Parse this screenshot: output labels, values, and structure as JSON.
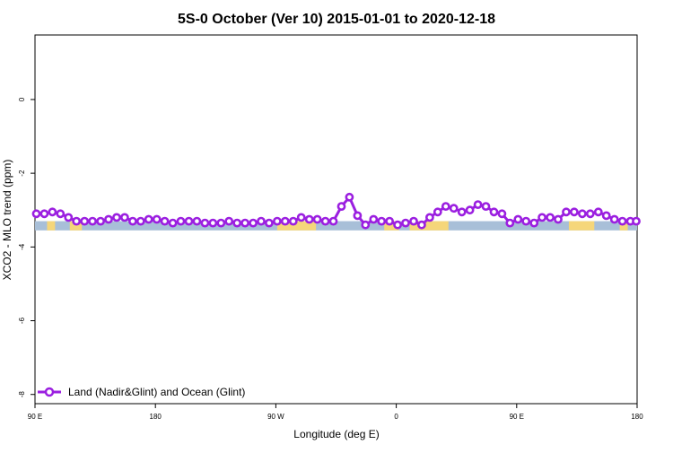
{
  "chart_data": {
    "type": "line",
    "title": "5S-0 October (Ver 10)   2015-01-01 to 2020-12-18",
    "xlabel": "Longitude (deg E)",
    "ylabel": "XCO2 - MLO trend (ppm)",
    "xlim": [
      90,
      540
    ],
    "ylim": [
      -8.25,
      1.75
    ],
    "x_ticks": [
      {
        "value": 90,
        "label": "90 E"
      },
      {
        "value": 180,
        "label": "180"
      },
      {
        "value": 270,
        "label": "90 W"
      },
      {
        "value": 360,
        "label": "0"
      },
      {
        "value": 450,
        "label": "90 E"
      },
      {
        "value": 540,
        "label": "180"
      }
    ],
    "y_ticks": [
      {
        "value": 0,
        "label": "0"
      },
      {
        "value": -2,
        "label": "-2"
      },
      {
        "value": -4,
        "label": "-4"
      },
      {
        "value": -6,
        "label": "-6"
      },
      {
        "value": -8,
        "label": "-8"
      }
    ],
    "band": {
      "y0": -3.3,
      "y1": -3.55,
      "ocean_color": "#a8bfd8",
      "land_color": "#f5d67a"
    },
    "land_segments": [
      [
        99,
        105
      ],
      [
        116,
        125
      ],
      [
        271,
        300
      ],
      [
        351,
        362
      ],
      [
        370,
        399
      ],
      [
        489,
        508
      ],
      [
        527,
        533
      ]
    ],
    "series": [
      {
        "name": "Land (Nadir&Glint) and Ocean (Glint)",
        "color": "#9b1fe0",
        "x": [
          91,
          97,
          103,
          109,
          115,
          121,
          127,
          133,
          139,
          145,
          151,
          157,
          163,
          169,
          175,
          181,
          187,
          193,
          199,
          205,
          211,
          217,
          223,
          229,
          235,
          241,
          247,
          253,
          259,
          265,
          271,
          277,
          283,
          289,
          295,
          301,
          307,
          313,
          319,
          325,
          331,
          337,
          343,
          349,
          355,
          361,
          367,
          373,
          379,
          385,
          391,
          397,
          403,
          409,
          415,
          421,
          427,
          433,
          439,
          445,
          451,
          457,
          463,
          469,
          475,
          481,
          487,
          493,
          499,
          505,
          511,
          517,
          523,
          529,
          535,
          541
        ],
        "values": [
          -3.1,
          -3.1,
          -3.05,
          -3.1,
          -3.2,
          -3.3,
          -3.3,
          -3.3,
          -3.3,
          -3.25,
          -3.2,
          -3.2,
          -3.3,
          -3.3,
          -3.25,
          -3.25,
          -3.3,
          -3.35,
          -3.3,
          -3.3,
          -3.3,
          -3.35,
          -3.35,
          -3.35,
          -3.3,
          -3.35,
          -3.35,
          -3.35,
          -3.3,
          -3.35,
          -3.3,
          -3.3,
          -3.3,
          -3.2,
          -3.25,
          -3.25,
          -3.3,
          -3.3,
          -2.9,
          -2.65,
          -3.15,
          -3.4,
          -3.25,
          -3.3,
          -3.3,
          -3.4,
          -3.35,
          -3.3,
          -3.4,
          -3.2,
          -3.05,
          -2.9,
          -2.95,
          -3.05,
          -3.0,
          -2.85,
          -2.9,
          -3.05,
          -3.1,
          -3.35,
          -3.25,
          -3.3,
          -3.35,
          -3.2,
          -3.2,
          -3.25,
          -3.05,
          -3.05,
          -3.1,
          -3.1,
          -3.05,
          -3.15,
          -3.25,
          -3.3,
          -3.3,
          -3.3
        ]
      }
    ],
    "legend": {
      "position": "bottom-left"
    }
  }
}
